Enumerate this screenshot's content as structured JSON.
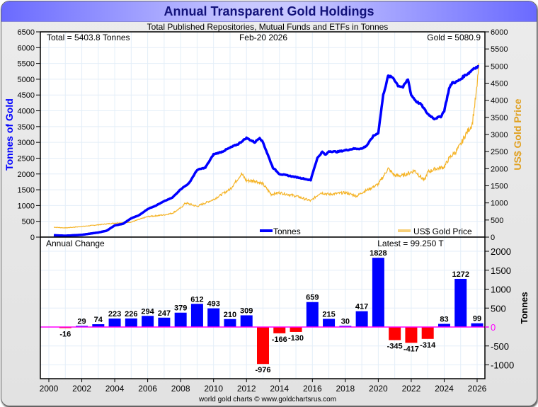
{
  "title": "Annual Transparent Gold Holdings",
  "subtitle": "Total Published Repositories, Mutual Funds and ETFs in Tonnes",
  "total_label": "Total = 5403.8 Tonnes",
  "date_label": "Feb-20  2026",
  "gold_label": "Gold = 5080.9",
  "footer": "world gold charts © www.goldchartsrus.com",
  "colors": {
    "tonnes": "#0000ff",
    "price": "#f5b428",
    "positive": "#0000ff",
    "negative": "#ff0000",
    "zero_line": "#ff00ff",
    "title": "#12127a",
    "left_axis_title": "#0000ff",
    "right_axis_title": "#e0a020"
  },
  "chart_data": [
    {
      "type": "line",
      "title": "Total Published Repositories, Mutual Funds and ETFs in Tonnes",
      "ylabel": "Tonnes of Gold",
      "ylabel_right": "US$ Gold Price",
      "ylim": [
        0,
        6500
      ],
      "ylim_right": [
        0,
        6000
      ],
      "xlim": [
        2000,
        2026.2
      ],
      "yticks": [
        "0",
        "500",
        "1000",
        "1500",
        "2000",
        "2500",
        "3000",
        "3500",
        "4000",
        "4500",
        "5000",
        "5500",
        "6000",
        "6500"
      ],
      "yticks_right": [
        "0",
        "500",
        "1000",
        "1500",
        "2000",
        "2500",
        "3000",
        "3500",
        "4000",
        "4500",
        "5000",
        "5500",
        "6000"
      ],
      "grid": true,
      "legend": [
        "Tonnes",
        "US$ Gold Price"
      ],
      "legend_placement": "bottom",
      "series": [
        {
          "name": "Tonnes",
          "axis": "left",
          "x": [
            2000.3,
            2001,
            2002,
            2003,
            2003.5,
            2004,
            2004.5,
            2005,
            2005.5,
            2006,
            2006.5,
            2007,
            2007.5,
            2008,
            2008.5,
            2009,
            2009.5,
            2010,
            2010.5,
            2011,
            2011.5,
            2012,
            2012.5,
            2012.8,
            2013,
            2013.3,
            2013.6,
            2014,
            2014.5,
            2015,
            2015.5,
            2015.9,
            2016,
            2016.3,
            2016.6,
            2016.8,
            2017,
            2017.5,
            2018,
            2018.5,
            2019,
            2019.3,
            2019.7,
            2020,
            2020.3,
            2020.6,
            2020.9,
            2021.2,
            2021.5,
            2021.8,
            2022,
            2022.3,
            2022.6,
            2023,
            2023.4,
            2023.8,
            2024,
            2024.3,
            2024.5,
            2024.7,
            2025,
            2025.2,
            2025.5,
            2025.8,
            2026.1
          ],
          "y": [
            60,
            44,
            73,
            147,
            200,
            370,
            420,
            596,
            700,
            890,
            1000,
            1137,
            1250,
            1516,
            1700,
            2128,
            2200,
            2621,
            2700,
            2831,
            2950,
            3140,
            3000,
            3150,
            3000,
            2600,
            2200,
            2000,
            1950,
            1900,
            1850,
            1800,
            2000,
            2500,
            2700,
            2600,
            2720,
            2700,
            2750,
            2800,
            2800,
            2900,
            3200,
            3300,
            4500,
            5100,
            5050,
            4800,
            4750,
            5000,
            4500,
            4300,
            4200,
            3900,
            3750,
            3820,
            4000,
            4700,
            4900,
            4900,
            5000,
            5100,
            5200,
            5350,
            5404
          ]
        },
        {
          "name": "US$ Gold Price",
          "axis": "right",
          "x": [
            2000.3,
            2001,
            2002,
            2003,
            2004,
            2005,
            2006,
            2007,
            2007.5,
            2008,
            2008.3,
            2009,
            2010,
            2011,
            2011.7,
            2012,
            2012.5,
            2013,
            2013.5,
            2014,
            2015,
            2015.9,
            2016.5,
            2017,
            2018,
            2018.7,
            2019,
            2019.5,
            2020,
            2020.6,
            2021,
            2021.5,
            2022,
            2022.2,
            2022.8,
            2023,
            2023.5,
            2024,
            2024.3,
            2024.7,
            2025,
            2025.3,
            2025.7,
            2026,
            2026.1
          ],
          "y": [
            290,
            270,
            310,
            360,
            410,
            440,
            600,
            650,
            700,
            850,
            1000,
            900,
            1100,
            1400,
            1850,
            1650,
            1650,
            1550,
            1250,
            1300,
            1200,
            1060,
            1300,
            1250,
            1300,
            1200,
            1300,
            1420,
            1550,
            2000,
            1800,
            1800,
            1900,
            1950,
            1650,
            1900,
            2000,
            2050,
            2300,
            2500,
            2700,
            3000,
            3300,
            4400,
            5081
          ]
        }
      ]
    },
    {
      "type": "bar",
      "title": "Annual Change",
      "annotation": "Latest = 99.250 T",
      "ylabel": "Tonnes",
      "ylim": [
        -1400,
        2400
      ],
      "yticks": [
        "-1000",
        "-500",
        "0",
        "500",
        "1000",
        "1500",
        "2000"
      ],
      "xticks": [
        "2000",
        "2002",
        "2004",
        "2006",
        "2008",
        "2010",
        "2012",
        "2014",
        "2016",
        "2018",
        "2020",
        "2022",
        "2024",
        "2026"
      ],
      "x": [
        2001,
        2002,
        2003,
        2004,
        2005,
        2006,
        2007,
        2008,
        2009,
        2010,
        2011,
        2012,
        2013,
        2014,
        2015,
        2016,
        2017,
        2018,
        2019,
        2020,
        2021,
        2022,
        2023,
        2024,
        2025,
        2026
      ],
      "values": [
        -16,
        29,
        74,
        223,
        226,
        294,
        247,
        379,
        612,
        493,
        210,
        309,
        -976,
        -166,
        -130,
        659,
        215,
        30,
        417,
        1828,
        -345,
        -417,
        -314,
        83,
        1272,
        99
      ],
      "labels": [
        "-16",
        "29",
        "74",
        "223",
        "226",
        "294",
        "247",
        "379",
        "612",
        "493",
        "210",
        "309",
        "-976",
        "-166",
        "-130",
        "659",
        "215",
        "30",
        "417",
        "1828",
        "-345",
        "-417",
        "-314",
        "83",
        "1272",
        "99"
      ]
    }
  ]
}
